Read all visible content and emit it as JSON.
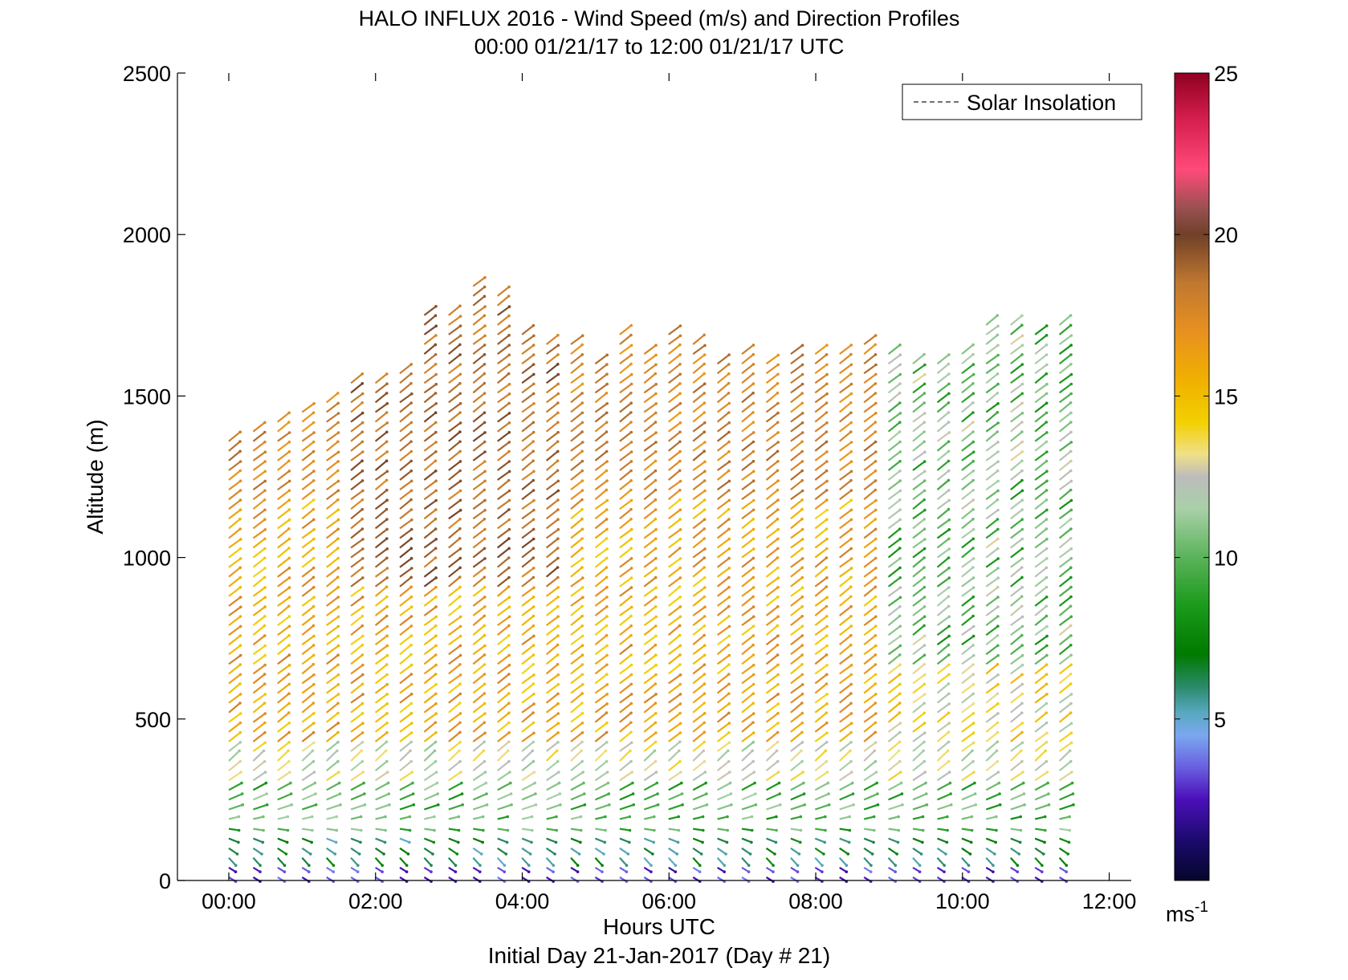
{
  "chart_data": {
    "type": "vector-profile",
    "title": "HALO INFLUX 2016 - Wind Speed (m/s) and Direction Profiles",
    "subtitle": "00:00 01/21/17 to 12:00 01/21/17  UTC",
    "xlabel": "Hours UTC",
    "xlabel2": "Initial Day 21-Jan-2017 (Day # 21)",
    "ylabel": "Altitude (m)",
    "xlim": [
      -0.7,
      12.3
    ],
    "ylim": [
      0,
      2500
    ],
    "x_ticks": [
      0,
      2,
      4,
      6,
      8,
      10,
      12
    ],
    "x_tick_labels": [
      "00:00",
      "02:00",
      "04:00",
      "06:00",
      "08:00",
      "10:00",
      "12:00"
    ],
    "y_ticks": [
      0,
      500,
      1000,
      1500,
      2000,
      2500
    ],
    "y_tick_labels": [
      "0",
      "500",
      "1000",
      "1500",
      "2000",
      "2500"
    ],
    "legend": {
      "entries": [
        "Solar Insolation"
      ],
      "placement": "top-right"
    },
    "colorbar": {
      "range": [
        0,
        25
      ],
      "ticks": [
        5,
        10,
        15,
        20,
        25
      ],
      "tick_labels": [
        "5",
        "10",
        "15",
        "20",
        "25"
      ],
      "unit_base": "ms",
      "unit_exp": "-1",
      "stops": [
        [
          0,
          "#05062a"
        ],
        [
          1.2,
          "#1a0a6b"
        ],
        [
          2.5,
          "#4a0fb8"
        ],
        [
          3.5,
          "#6a5ee0"
        ],
        [
          4.5,
          "#7aa8f0"
        ],
        [
          5.2,
          "#58a8c0"
        ],
        [
          6.0,
          "#2a8a6a"
        ],
        [
          7.0,
          "#007a00"
        ],
        [
          8.5,
          "#1a9a1a"
        ],
        [
          10,
          "#5ab35a"
        ],
        [
          11.5,
          "#a8d0a8"
        ],
        [
          12.5,
          "#bcbcbc"
        ],
        [
          13.2,
          "#f0e088"
        ],
        [
          14.2,
          "#f2d000"
        ],
        [
          15.5,
          "#f0b000"
        ],
        [
          17,
          "#e89020"
        ],
        [
          18.5,
          "#c07830"
        ],
        [
          20,
          "#704028"
        ],
        [
          20.8,
          "#985050"
        ],
        [
          22,
          "#ff4a7a"
        ],
        [
          23.5,
          "#d82050"
        ],
        [
          25,
          "#900020"
        ]
      ]
    },
    "profiles": {
      "start_hour": 0.0,
      "interval_hours": 0.333,
      "count": 35,
      "altitude_spacing_m": 30,
      "arrow_length_hours": 0.2,
      "representative_wind": [
        {
          "altitude_m": 0,
          "speed_ms": 2,
          "direction": "from-northwest"
        },
        {
          "altitude_m": 100,
          "speed_ms": 5,
          "direction": "from-northwest"
        },
        {
          "altitude_m": 250,
          "speed_ms": 9,
          "direction": "from-north"
        },
        {
          "altitude_m": 500,
          "speed_ms": 15,
          "direction": "from-southwest"
        },
        {
          "altitude_m": 1200,
          "speed_ms": 18,
          "direction": "from-southwest"
        }
      ]
    }
  }
}
